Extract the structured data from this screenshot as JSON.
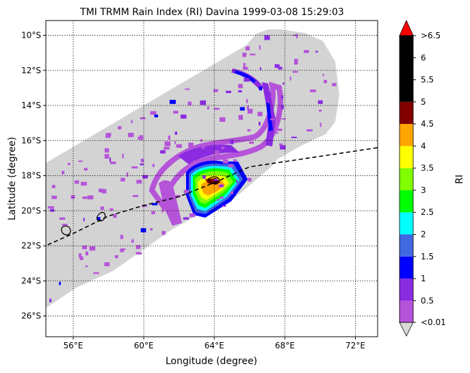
{
  "title": "TMI TRMM Rain Index (RI) Davina 1999-03-08 15:29:03",
  "x_axis": {
    "label": "Longitude (degree)",
    "ticks": [
      {
        "value": 56,
        "label": "56°E"
      },
      {
        "value": 60,
        "label": "60°E"
      },
      {
        "value": 64,
        "label": "64°E"
      },
      {
        "value": 68,
        "label": "68°E"
      },
      {
        "value": 72,
        "label": "72°E"
      }
    ]
  },
  "y_axis": {
    "label": "Latitude (degree)",
    "ticks": [
      {
        "value": -10,
        "label": "10°S"
      },
      {
        "value": -12,
        "label": "12°S"
      },
      {
        "value": -14,
        "label": "14°S"
      },
      {
        "value": -16,
        "label": "16°S"
      },
      {
        "value": -18,
        "label": "18°S"
      },
      {
        "value": -20,
        "label": "20°S"
      },
      {
        "value": -22,
        "label": "22°S"
      },
      {
        "value": -24,
        "label": "24°S"
      },
      {
        "value": -26,
        "label": "26°S"
      }
    ]
  },
  "colorbar": {
    "label": "RI",
    "over_label": ">6.5",
    "under_label": "<0.01",
    "over_color": "#ff0000",
    "under_color": "#d9d9d9",
    "tick_labels": [
      "0.5",
      "1",
      "1.5",
      "2",
      "2.5",
      "3",
      "3.5",
      "4",
      "4.5",
      "5",
      "5.5",
      "6"
    ],
    "bins": [
      {
        "from": 0.01,
        "to": 0.5,
        "color": "#b554d9"
      },
      {
        "from": 0.5,
        "to": 1.0,
        "color": "#8a2be2"
      },
      {
        "from": 1.0,
        "to": 1.5,
        "color": "#0000ff"
      },
      {
        "from": 1.5,
        "to": 2.0,
        "color": "#4169e1"
      },
      {
        "from": 2.0,
        "to": 2.5,
        "color": "#00ffff"
      },
      {
        "from": 2.5,
        "to": 3.0,
        "color": "#00ff00"
      },
      {
        "from": 3.0,
        "to": 3.5,
        "color": "#7fff00"
      },
      {
        "from": 3.5,
        "to": 4.0,
        "color": "#ffff00"
      },
      {
        "from": 4.0,
        "to": 4.5,
        "color": "#ffa500"
      },
      {
        "from": 4.5,
        "to": 5.0,
        "color": "#800000"
      },
      {
        "from": 5.0,
        "to": 6.5,
        "color": "#000000"
      }
    ]
  },
  "map_colors": {
    "swath": "#d3d3d3",
    "rain_light": "#b554d9",
    "rain_moderate": "#8a2be2",
    "rain_blue": "#0000ff",
    "rain_royal": "#4169e1",
    "rain_cyan": "#00ffff",
    "rain_green": "#00ff00",
    "rain_chartreuse": "#7fff00",
    "rain_yellow": "#ffff00",
    "rain_orange": "#ffa500",
    "rain_maroon": "#800000"
  },
  "storm_track": {
    "style": "dashed",
    "points": [
      [
        54.2,
        -22.1
      ],
      [
        56,
        -21.3
      ],
      [
        58,
        -20.3
      ],
      [
        60,
        -19.7
      ],
      [
        62,
        -19.2
      ],
      [
        64,
        -18.4
      ],
      [
        66,
        -17.5
      ],
      [
        68,
        -17.2
      ],
      [
        70,
        -16.9
      ],
      [
        72,
        -16.6
      ],
      [
        73.3,
        -16.4
      ]
    ]
  }
}
